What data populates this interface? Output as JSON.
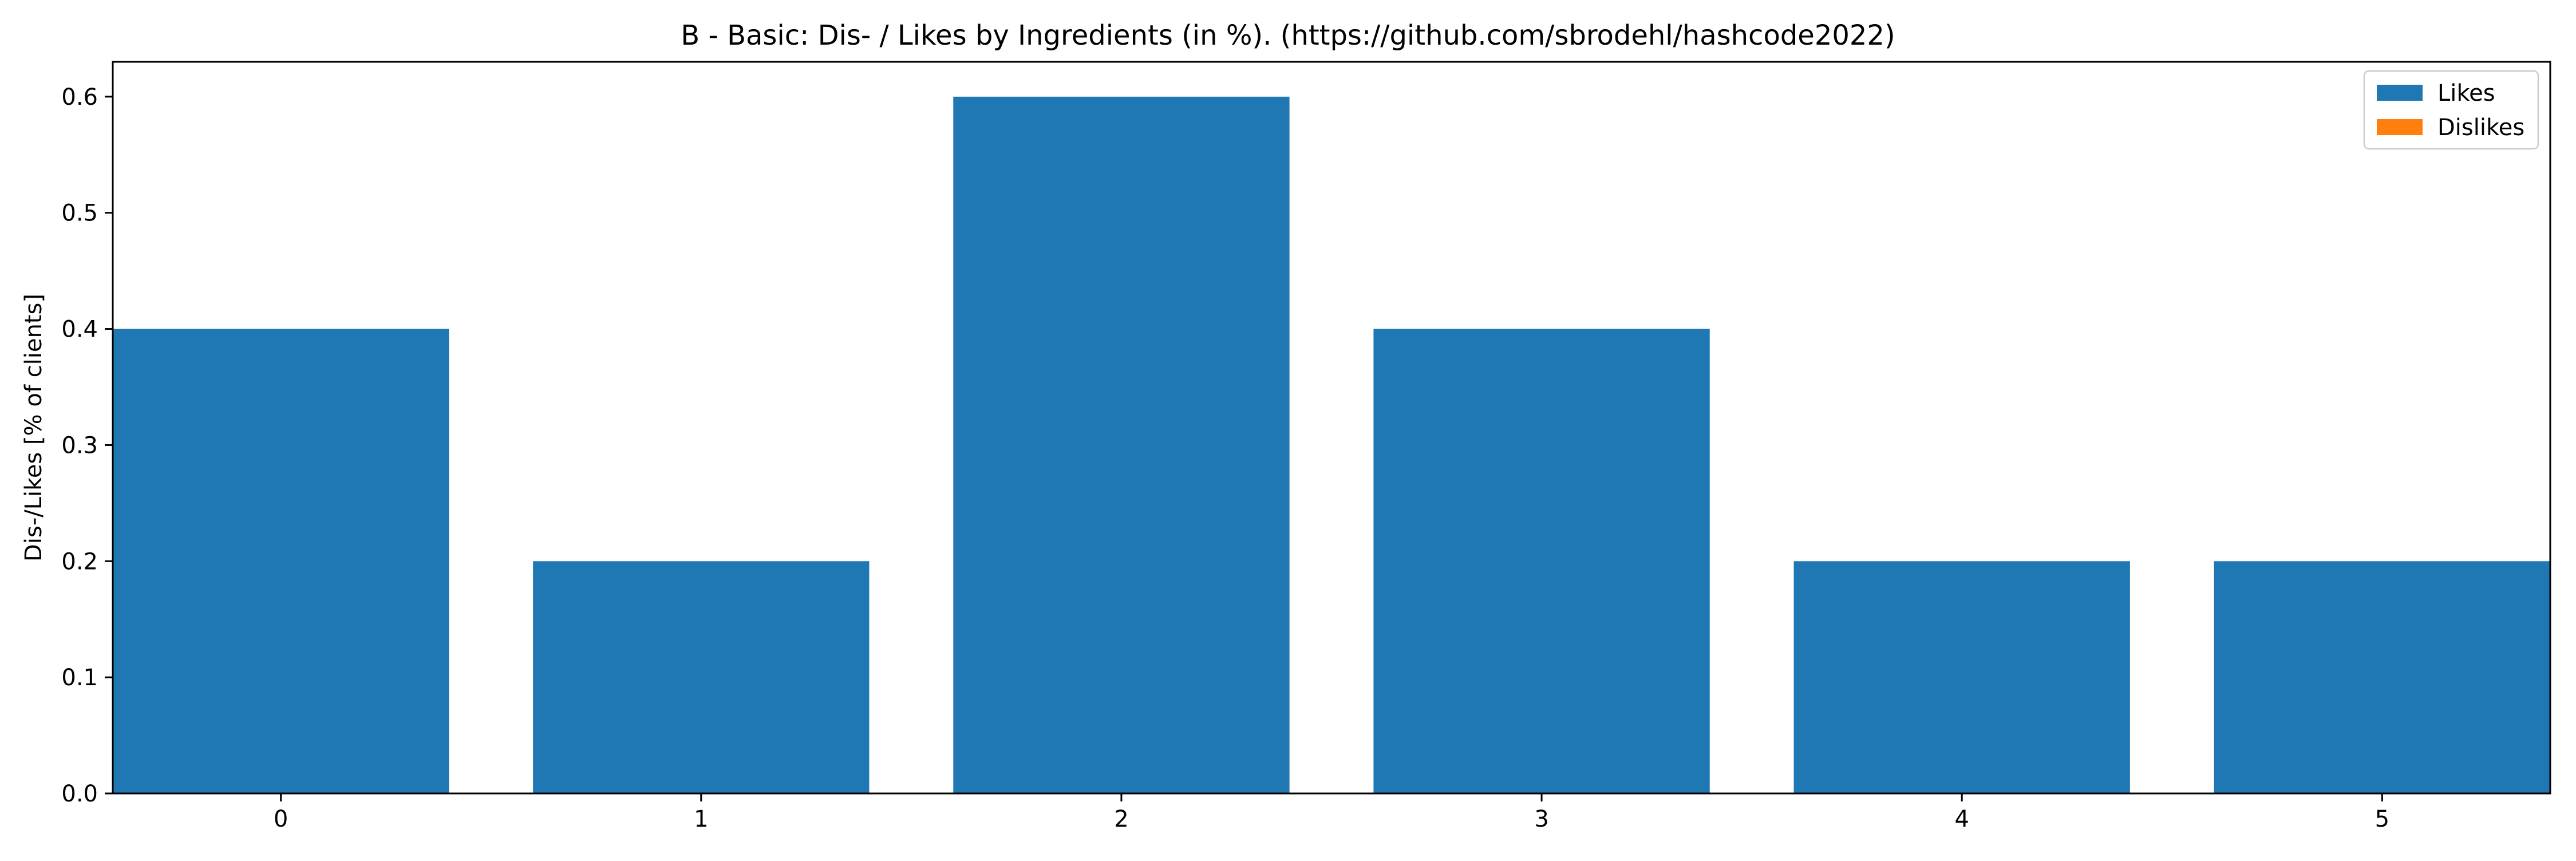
{
  "chart_data": {
    "type": "bar",
    "title": "B - Basic: Dis- / Likes by Ingredients (in %). (https://github.com/sbrodehl/hashcode2022)",
    "xlabel": "",
    "ylabel": "Dis-/Likes [% of clients]",
    "categories": [
      "0",
      "1",
      "2",
      "3",
      "4",
      "5"
    ],
    "series": [
      {
        "name": "Likes",
        "color": "#1f77b4",
        "values": [
          0.4,
          0.2,
          0.6,
          0.4,
          0.2,
          0.2
        ]
      },
      {
        "name": "Dislikes",
        "color": "#ff7f0e",
        "values": [
          0,
          0,
          0,
          0,
          0,
          0
        ]
      }
    ],
    "xlim": [
      -0.4,
      5.4
    ],
    "ylim": [
      0,
      0.63
    ],
    "yticks": [
      0.0,
      0.1,
      0.2,
      0.3,
      0.4,
      0.5,
      0.6
    ],
    "ytick_labels": [
      "0.0",
      "0.1",
      "0.2",
      "0.3",
      "0.4",
      "0.5",
      "0.6"
    ],
    "grid": false,
    "legend_position": "top-right"
  }
}
